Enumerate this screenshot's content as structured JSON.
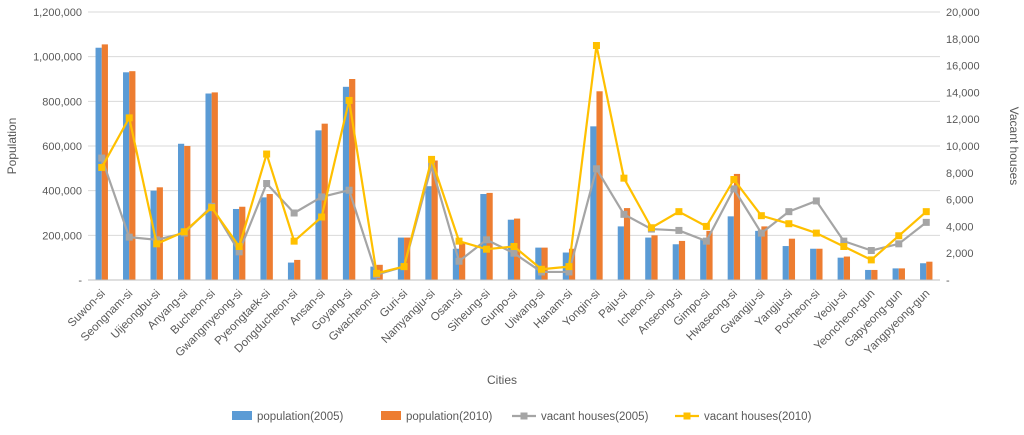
{
  "chart_data": {
    "type": "bar+line",
    "xlabel": "Cities",
    "ylabel_left": "Population",
    "ylabel_right": "Vacant houses",
    "ylim_left": [
      0,
      1200000
    ],
    "ylim_right": [
      0,
      20000
    ],
    "left_ticks": [
      "-",
      "200,000",
      "400,000",
      "600,000",
      "800,000",
      "1,000,000",
      "1,200,000"
    ],
    "right_ticks": [
      "-",
      "2,000",
      "4,000",
      "6,000",
      "8,000",
      "10,000",
      "12,000",
      "14,000",
      "16,000",
      "18,000",
      "20,000"
    ],
    "grid": true,
    "legend_position": "bottom",
    "categories": [
      "Suwon-si",
      "Seongnam-si",
      "Uijeongbu-si",
      "Anyang-si",
      "Bucheon-si",
      "Gwangmyeong-si",
      "Pyeongtaek-si",
      "Dongducheon-si",
      "Ansan-si",
      "Goyang-si",
      "Gwacheon-si",
      "Guri-si",
      "Namyangju-si",
      "Osan-si",
      "Siheung-si",
      "Gunpo-si",
      "Uiwang-si",
      "Hanam-si",
      "Yongin-si",
      "Paju-si",
      "Icheon-si",
      "Anseong-si",
      "Gimpo-si",
      "Hwaseong-si",
      "Gwangju-si",
      "Yangju-si",
      "Pocheon-si",
      "Yeoju-si",
      "Yeoncheon-gun",
      "Gapyeong-gun",
      "Yangpyeong-gun"
    ],
    "series": [
      {
        "name": "population(2005)",
        "kind": "bar",
        "axis": "left",
        "color": "#5b9bd5",
        "values": [
          1040000,
          930000,
          400000,
          610000,
          835000,
          318000,
          370000,
          78000,
          670000,
          865000,
          60000,
          190000,
          420000,
          140000,
          385000,
          270000,
          145000,
          123000,
          688000,
          240000,
          190000,
          160000,
          185000,
          285000,
          220000,
          152000,
          140000,
          100000,
          45000,
          52000,
          75000
        ]
      },
      {
        "name": "population(2010)",
        "kind": "bar",
        "axis": "left",
        "color": "#ed7d31",
        "values": [
          1055000,
          935000,
          415000,
          600000,
          840000,
          328000,
          385000,
          90000,
          700000,
          900000,
          68000,
          190000,
          535000,
          165000,
          390000,
          275000,
          145000,
          140000,
          845000,
          322000,
          200000,
          175000,
          220000,
          475000,
          240000,
          185000,
          140000,
          105000,
          45000,
          52000,
          82000
        ]
      },
      {
        "name": "vacant houses(2005)",
        "kind": "line",
        "axis": "right",
        "color": "#a5a5a5",
        "values": [
          9100,
          3200,
          3000,
          3500,
          5500,
          2100,
          7200,
          5000,
          6200,
          6700,
          400,
          1000,
          8500,
          1400,
          3000,
          2000,
          600,
          600,
          8300,
          4900,
          3800,
          3700,
          2900,
          6800,
          3500,
          5100,
          5900,
          2900,
          2200,
          2700,
          4300
        ]
      },
      {
        "name": "vacant houses(2010)",
        "kind": "line",
        "axis": "right",
        "color": "#ffc000",
        "values": [
          8400,
          12100,
          2700,
          3600,
          5400,
          2500,
          9400,
          2900,
          4700,
          13400,
          500,
          1000,
          9000,
          2900,
          2300,
          2500,
          800,
          1000,
          17500,
          7600,
          3900,
          5100,
          4000,
          7500,
          4800,
          4200,
          3500,
          2500,
          1500,
          3300,
          5100
        ]
      }
    ]
  }
}
